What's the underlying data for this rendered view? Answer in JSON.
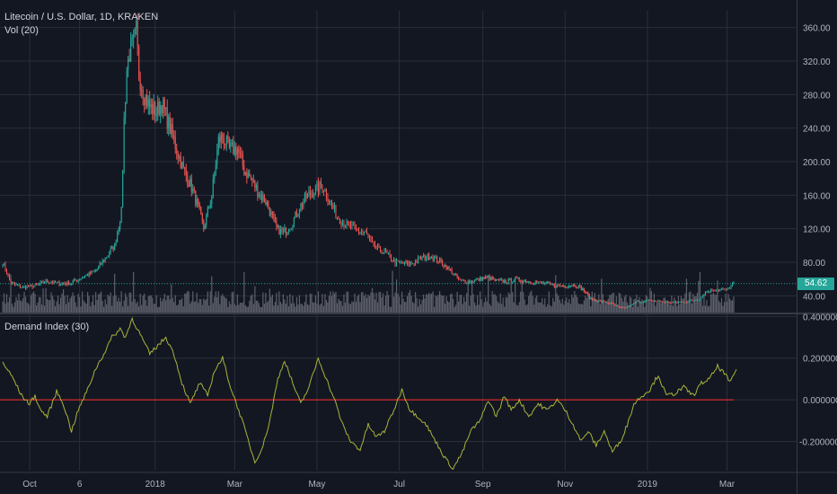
{
  "header": {
    "title": "Litecoin / U.S. Dollar, 1D, KRAKEN",
    "volume_label": "Vol (20)",
    "indicator_label": "Demand Index (30)"
  },
  "last_price_label": "54.62",
  "colors": {
    "background": "#131722",
    "grid": "#2a2e39",
    "up": "#26a69a",
    "down": "#ef5350",
    "volume": "#5d606b",
    "indicator_line": "#a9b33a",
    "zero_line": "#ff2b2b",
    "price_line": "#26a69a"
  },
  "chart_data": [
    {
      "type": "candlestick",
      "title": "Litecoin / U.S. Dollar, 1D, KRAKEN",
      "x_ticks": [
        "Oct",
        "6",
        "2018",
        "Mar",
        "May",
        "Jul",
        "Sep",
        "Nov",
        "2019",
        "Mar"
      ],
      "y_ticks": [
        "360.00",
        "320.00",
        "280.00",
        "240.00",
        "200.00",
        "160.00",
        "120.00",
        "80.00",
        "40.00"
      ],
      "ylim": [
        20,
        380
      ],
      "last_price": 54.62,
      "close_path": [
        [
          "2017-09-10",
          80
        ],
        [
          "2017-09-16",
          55
        ],
        [
          "2017-09-25",
          50
        ],
        [
          "2017-10-05",
          52
        ],
        [
          "2017-10-12",
          58
        ],
        [
          "2017-10-20",
          55
        ],
        [
          "2017-10-30",
          55
        ],
        [
          "2017-11-08",
          62
        ],
        [
          "2017-11-18",
          70
        ],
        [
          "2017-11-25",
          85
        ],
        [
          "2017-12-02",
          100
        ],
        [
          "2017-12-07",
          140
        ],
        [
          "2017-12-09",
          250
        ],
        [
          "2017-12-11",
          310
        ],
        [
          "2017-12-13",
          330
        ],
        [
          "2017-12-16",
          340
        ],
        [
          "2017-12-18",
          355
        ],
        [
          "2017-12-20",
          305
        ],
        [
          "2017-12-24",
          280
        ],
        [
          "2017-12-28",
          265
        ],
        [
          "2018-01-02",
          260
        ],
        [
          "2018-01-06",
          270
        ],
        [
          "2018-01-10",
          250
        ],
        [
          "2018-01-14",
          230
        ],
        [
          "2018-01-18",
          210
        ],
        [
          "2018-01-22",
          190
        ],
        [
          "2018-01-28",
          170
        ],
        [
          "2018-02-03",
          140
        ],
        [
          "2018-02-06",
          120
        ],
        [
          "2018-02-12",
          160
        ],
        [
          "2018-02-17",
          225
        ],
        [
          "2018-02-20",
          230
        ],
        [
          "2018-02-25",
          215
        ],
        [
          "2018-03-03",
          215
        ],
        [
          "2018-03-08",
          190
        ],
        [
          "2018-03-13",
          180
        ],
        [
          "2018-03-18",
          165
        ],
        [
          "2018-03-25",
          150
        ],
        [
          "2018-04-01",
          120
        ],
        [
          "2018-04-06",
          115
        ],
        [
          "2018-04-12",
          125
        ],
        [
          "2018-04-18",
          145
        ],
        [
          "2018-04-24",
          160
        ],
        [
          "2018-04-29",
          165
        ],
        [
          "2018-05-05",
          172
        ],
        [
          "2018-05-10",
          155
        ],
        [
          "2018-05-16",
          135
        ],
        [
          "2018-05-22",
          125
        ],
        [
          "2018-05-30",
          118
        ],
        [
          "2018-06-06",
          115
        ],
        [
          "2018-06-12",
          98
        ],
        [
          "2018-06-20",
          92
        ],
        [
          "2018-06-28",
          80
        ],
        [
          "2018-07-06",
          78
        ],
        [
          "2018-07-12",
          80
        ],
        [
          "2018-07-18",
          85
        ],
        [
          "2018-07-24",
          88
        ],
        [
          "2018-08-01",
          80
        ],
        [
          "2018-08-08",
          70
        ],
        [
          "2018-08-15",
          58
        ],
        [
          "2018-08-22",
          57
        ],
        [
          "2018-08-30",
          60
        ],
        [
          "2018-09-05",
          62
        ],
        [
          "2018-09-10",
          58
        ],
        [
          "2018-09-18",
          57
        ],
        [
          "2018-09-25",
          60
        ],
        [
          "2018-10-02",
          58
        ],
        [
          "2018-10-10",
          56
        ],
        [
          "2018-10-18",
          54
        ],
        [
          "2018-10-25",
          52
        ],
        [
          "2018-11-01",
          52
        ],
        [
          "2018-11-08",
          53
        ],
        [
          "2018-11-14",
          48
        ],
        [
          "2018-11-20",
          36
        ],
        [
          "2018-11-28",
          33
        ],
        [
          "2018-12-05",
          31
        ],
        [
          "2018-12-12",
          25
        ],
        [
          "2018-12-18",
          27
        ],
        [
          "2018-12-25",
          33
        ],
        [
          "2019-01-02",
          34
        ],
        [
          "2019-01-10",
          33
        ],
        [
          "2019-01-20",
          32
        ],
        [
          "2019-01-30",
          33
        ],
        [
          "2019-02-08",
          36
        ],
        [
          "2019-02-14",
          45
        ],
        [
          "2019-02-22",
          48
        ],
        [
          "2019-03-01",
          47
        ],
        [
          "2019-03-06",
          54.62
        ]
      ]
    },
    {
      "type": "line",
      "title": "Demand Index (30)",
      "y_ticks": [
        "0.400000",
        "0.200000",
        "0.000000",
        "-0.200000"
      ],
      "ylim": [
        -0.34,
        0.41
      ],
      "zero_line": 0,
      "points": [
        [
          "2017-09-10",
          0.18
        ],
        [
          "2017-09-18",
          0.1
        ],
        [
          "2017-09-24",
          0.02
        ],
        [
          "2017-09-30",
          -0.02
        ],
        [
          "2017-10-04",
          0.02
        ],
        [
          "2017-10-08",
          -0.05
        ],
        [
          "2017-10-13",
          -0.08
        ],
        [
          "2017-10-20",
          0.04
        ],
        [
          "2017-10-25",
          -0.02
        ],
        [
          "2017-10-31",
          -0.15
        ],
        [
          "2017-11-05",
          -0.05
        ],
        [
          "2017-11-12",
          0.05
        ],
        [
          "2017-11-18",
          0.15
        ],
        [
          "2017-11-24",
          0.22
        ],
        [
          "2017-11-30",
          0.3
        ],
        [
          "2017-12-06",
          0.34
        ],
        [
          "2017-12-10",
          0.3
        ],
        [
          "2017-12-15",
          0.39
        ],
        [
          "2017-12-22",
          0.3
        ],
        [
          "2017-12-28",
          0.22
        ],
        [
          "2018-01-03",
          0.26
        ],
        [
          "2018-01-09",
          0.3
        ],
        [
          "2018-01-15",
          0.22
        ],
        [
          "2018-01-21",
          0.08
        ],
        [
          "2018-01-27",
          -0.02
        ],
        [
          "2018-02-03",
          0.08
        ],
        [
          "2018-02-09",
          0.02
        ],
        [
          "2018-02-14",
          0.14
        ],
        [
          "2018-02-20",
          0.2
        ],
        [
          "2018-02-26",
          0.06
        ],
        [
          "2018-03-04",
          -0.05
        ],
        [
          "2018-03-09",
          -0.15
        ],
        [
          "2018-03-16",
          -0.3
        ],
        [
          "2018-03-22",
          -0.22
        ],
        [
          "2018-03-27",
          -0.1
        ],
        [
          "2018-04-02",
          0.1
        ],
        [
          "2018-04-07",
          0.19
        ],
        [
          "2018-04-13",
          0.08
        ],
        [
          "2018-04-19",
          -0.02
        ],
        [
          "2018-04-25",
          0.06
        ],
        [
          "2018-05-02",
          0.2
        ],
        [
          "2018-05-08",
          0.1
        ],
        [
          "2018-05-14",
          0.0
        ],
        [
          "2018-05-20",
          -0.12
        ],
        [
          "2018-05-26",
          -0.2
        ],
        [
          "2018-06-02",
          -0.24
        ],
        [
          "2018-06-08",
          -0.12
        ],
        [
          "2018-06-14",
          -0.18
        ],
        [
          "2018-06-20",
          -0.15
        ],
        [
          "2018-06-27",
          -0.05
        ],
        [
          "2018-07-03",
          0.05
        ],
        [
          "2018-07-09",
          -0.05
        ],
        [
          "2018-07-15",
          -0.08
        ],
        [
          "2018-07-21",
          -0.12
        ],
        [
          "2018-07-28",
          -0.2
        ],
        [
          "2018-08-04",
          -0.28
        ],
        [
          "2018-08-10",
          -0.33
        ],
        [
          "2018-08-17",
          -0.25
        ],
        [
          "2018-08-23",
          -0.15
        ],
        [
          "2018-08-30",
          -0.1
        ],
        [
          "2018-09-05",
          0.0
        ],
        [
          "2018-09-11",
          -0.08
        ],
        [
          "2018-09-17",
          0.02
        ],
        [
          "2018-09-22",
          -0.05
        ],
        [
          "2018-09-28",
          0.0
        ],
        [
          "2018-10-05",
          -0.08
        ],
        [
          "2018-10-12",
          -0.02
        ],
        [
          "2018-10-19",
          -0.05
        ],
        [
          "2018-10-26",
          0.0
        ],
        [
          "2018-11-01",
          -0.05
        ],
        [
          "2018-11-07",
          -0.12
        ],
        [
          "2018-11-13",
          -0.2
        ],
        [
          "2018-11-18",
          -0.15
        ],
        [
          "2018-11-24",
          -0.22
        ],
        [
          "2018-11-30",
          -0.15
        ],
        [
          "2018-12-06",
          -0.25
        ],
        [
          "2018-12-12",
          -0.2
        ],
        [
          "2018-12-17",
          -0.12
        ],
        [
          "2018-12-22",
          -0.02
        ],
        [
          "2018-12-28",
          0.02
        ],
        [
          "2019-01-03",
          0.05
        ],
        [
          "2019-01-09",
          0.12
        ],
        [
          "2019-01-15",
          0.02
        ],
        [
          "2019-01-21",
          0.03
        ],
        [
          "2019-01-28",
          0.06
        ],
        [
          "2019-02-04",
          0.02
        ],
        [
          "2019-02-10",
          0.08
        ],
        [
          "2019-02-16",
          0.1
        ],
        [
          "2019-02-22",
          0.16
        ],
        [
          "2019-02-28",
          0.12
        ],
        [
          "2019-03-03",
          0.08
        ],
        [
          "2019-03-08",
          0.15
        ]
      ]
    }
  ]
}
